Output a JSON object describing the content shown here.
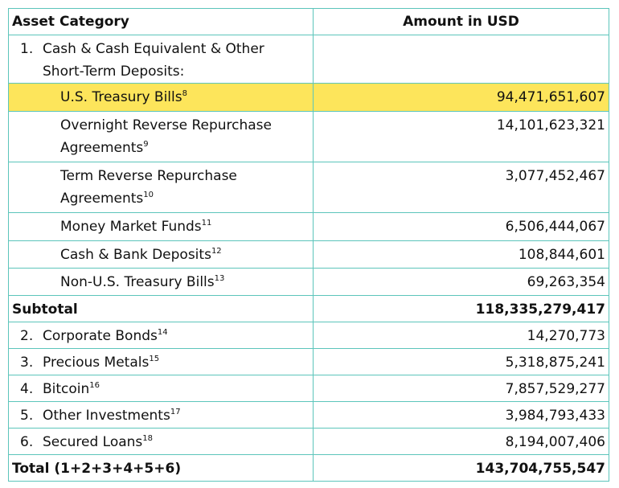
{
  "header": {
    "category": "Asset Category",
    "amount": "Amount in USD"
  },
  "highlight_color": "#fde55b",
  "border_color": "#5cc5bb",
  "section1": {
    "number": "1.",
    "label_line1": "Cash & Cash Equivalent & Other",
    "label_line2": "Short-Term Deposits:"
  },
  "sub_items": [
    {
      "label": "U.S. Treasury Bills",
      "note": "8",
      "amount": "94,471,651,607",
      "highlighted": true
    },
    {
      "label_line1": "Overnight Reverse Repurchase",
      "label_line2": "Agreements",
      "note": "9",
      "amount": "14,101,623,321"
    },
    {
      "label_line1": "Term Reverse Repurchase",
      "label_line2": "Agreements",
      "note": "10",
      "amount": "3,077,452,467"
    },
    {
      "label": "Money Market Funds",
      "note": "11",
      "amount": "6,506,444,067"
    },
    {
      "label": "Cash & Bank Deposits",
      "note": "12",
      "amount": "108,844,601"
    },
    {
      "label": "Non-U.S. Treasury Bills",
      "note": "13",
      "amount": "69,263,354"
    }
  ],
  "subtotal": {
    "label": "Subtotal",
    "amount": "118,335,279,417"
  },
  "items": [
    {
      "number": "2.",
      "label": "Corporate Bonds",
      "note": "14",
      "amount": "14,270,773"
    },
    {
      "number": "3.",
      "label": "Precious Metals",
      "note": "15",
      "amount": "5,318,875,241"
    },
    {
      "number": "4.",
      "label": "Bitcoin",
      "note": "16",
      "amount": "7,857,529,277"
    },
    {
      "number": "5.",
      "label": "Other Investments",
      "note": "17",
      "amount": "3,984,793,433"
    },
    {
      "number": "6.",
      "label": "Secured Loans",
      "note": "18",
      "amount": "8,194,007,406"
    }
  ],
  "total": {
    "label": "Total (1+2+3+4+5+6)",
    "amount": "143,704,755,547"
  }
}
